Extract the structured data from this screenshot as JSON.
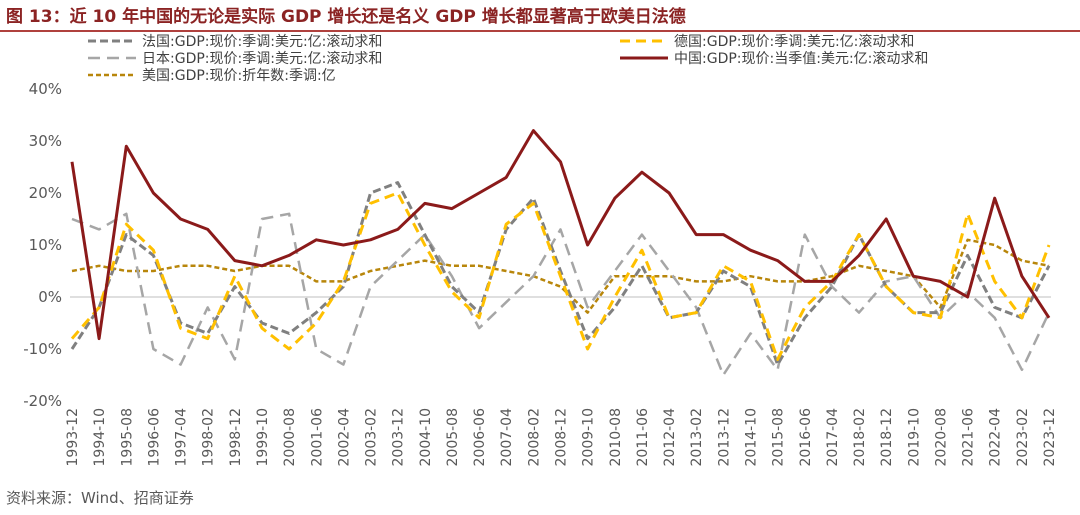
{
  "header": {
    "title": "图 13：近 10 年中国的无论是实际 GDP 增长还是名义 GDP 增长都显著高于欧美日法德"
  },
  "footer": {
    "source": "资料来源：Wind、招商证券"
  },
  "colors": {
    "france": "#808080",
    "germany": "#FFC000",
    "japan": "#A6A6A6",
    "china": "#8B1A1A",
    "usa": "#B8860B",
    "title": "#8B2323",
    "axis": "#595959"
  },
  "chart_data": {
    "type": "line",
    "x": [
      "1993-12",
      "1994-10",
      "1995-08",
      "1996-06",
      "1997-04",
      "1998-02",
      "1998-12",
      "1999-10",
      "2000-08",
      "2001-06",
      "2002-04",
      "2003-02",
      "2003-12",
      "2004-10",
      "2005-08",
      "2006-06",
      "2007-04",
      "2008-02",
      "2008-12",
      "2009-10",
      "2010-08",
      "2011-06",
      "2012-04",
      "2013-02",
      "2013-12",
      "2014-10",
      "2015-08",
      "2016-06",
      "2017-04",
      "2018-02",
      "2018-12",
      "2019-10",
      "2020-08",
      "2021-06",
      "2022-04",
      "2023-02",
      "2023-12"
    ],
    "yticks": [
      "40%",
      "30%",
      "20%",
      "10%",
      "0%",
      "-10%",
      "-20%"
    ],
    "ylim": [
      -20,
      40
    ],
    "grid": false,
    "legend_position": "top",
    "series": [
      {
        "name": "法国:GDP:现价:季调:美元:亿:滚动求和",
        "style": "dash-dark",
        "values": [
          -10,
          -2,
          12,
          8,
          -5,
          -7,
          2,
          -5,
          -7,
          -3,
          2,
          20,
          22,
          12,
          2,
          -3,
          13,
          19,
          5,
          -8,
          -2,
          6,
          -4,
          -3,
          5,
          2,
          -13,
          -4,
          2,
          12,
          2,
          -3,
          -3,
          8,
          -2,
          -4,
          6
        ]
      },
      {
        "name": "德国:GDP:现价:季调:美元:亿:滚动求和",
        "style": "dash-gold",
        "values": [
          -8,
          -2,
          14,
          9,
          -6,
          -8,
          4,
          -6,
          -10,
          -5,
          3,
          18,
          20,
          10,
          1,
          -4,
          14,
          18,
          4,
          -10,
          0,
          9,
          -4,
          -3,
          6,
          3,
          -12,
          -2,
          3,
          12,
          2,
          -3,
          -4,
          16,
          3,
          -4,
          10
        ]
      },
      {
        "name": "日本:GDP:现价:季调:美元:亿:滚动求和",
        "style": "dash-gray",
        "values": [
          15,
          13,
          16,
          -10,
          -13,
          -2,
          -12,
          15,
          16,
          -10,
          -13,
          2,
          7,
          12,
          4,
          -6,
          -1,
          4,
          13,
          -2,
          5,
          12,
          5,
          -2,
          -15,
          -7,
          -14,
          12,
          2,
          -3,
          3,
          4,
          -4,
          1,
          -4,
          -14,
          -3
        ]
      },
      {
        "name": "中国:GDP:现价:当季值:美元:亿:滚动求和",
        "style": "solid-red",
        "values": [
          26,
          -8,
          29,
          20,
          15,
          13,
          7,
          6,
          8,
          11,
          10,
          11,
          13,
          18,
          17,
          20,
          23,
          32,
          26,
          10,
          19,
          24,
          20,
          12,
          12,
          9,
          7,
          3,
          3,
          8,
          15,
          4,
          3,
          0,
          19,
          4,
          -4
        ]
      },
      {
        "name": "美国:GDP:现价:折年数:季调:亿",
        "style": "dash-olive",
        "values": [
          5,
          6,
          5,
          5,
          6,
          6,
          5,
          6,
          6,
          3,
          3,
          5,
          6,
          7,
          6,
          6,
          5,
          4,
          2,
          -3,
          4,
          4,
          4,
          3,
          3,
          4,
          3,
          3,
          4,
          6,
          5,
          4,
          -2,
          11,
          10,
          7,
          6
        ]
      }
    ]
  }
}
